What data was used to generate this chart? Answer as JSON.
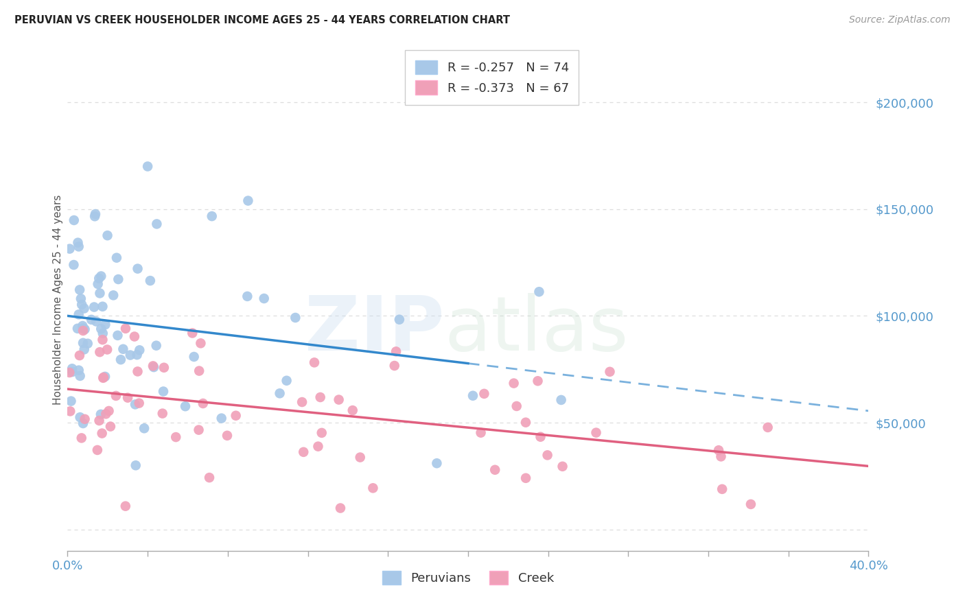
{
  "title": "PERUVIAN VS CREEK HOUSEHOLDER INCOME AGES 25 - 44 YEARS CORRELATION CHART",
  "source": "Source: ZipAtlas.com",
  "ylabel": "Householder Income Ages 25 - 44 years",
  "xmin": 0.0,
  "xmax": 40.0,
  "ymin": -10000,
  "ymax": 225000,
  "ytick_vals": [
    0,
    50000,
    100000,
    150000,
    200000
  ],
  "ytick_labels": [
    "",
    "$50,000",
    "$100,000",
    "$150,000",
    "$200,000"
  ],
  "blue_R": -0.257,
  "blue_N": 74,
  "pink_R": -0.373,
  "pink_N": 67,
  "blue_color": "#A8C8E8",
  "pink_color": "#F0A0B8",
  "blue_line_color": "#3388CC",
  "pink_line_color": "#E06080",
  "legend_label_blue": "Peruvians",
  "legend_label_pink": "Creek",
  "grid_color": "#DDDDDD",
  "axis_label_color": "#5599CC",
  "title_color": "#222222",
  "source_color": "#999999"
}
